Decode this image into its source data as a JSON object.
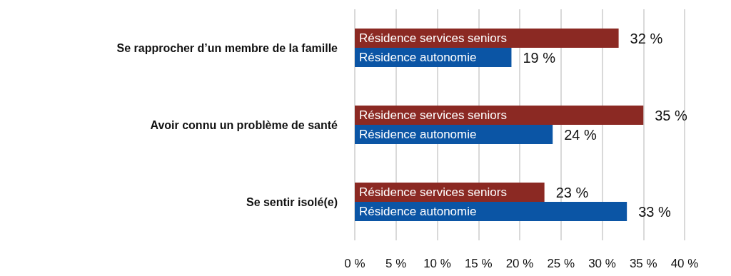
{
  "chart_data": {
    "type": "bar",
    "orientation": "horizontal",
    "categories": [
      "Se rapprocher d’un membre de la famille",
      "Avoir connu un problème de santé",
      "Se sentir isolé(e)"
    ],
    "series": [
      {
        "name": "Résidence services seniors",
        "color": "#8b2923",
        "values": [
          32,
          35,
          23
        ],
        "value_labels": [
          "32 %",
          "35 %",
          "23 %"
        ]
      },
      {
        "name": "Résidence autonomie",
        "color": "#0b55a5",
        "values": [
          19,
          24,
          33
        ],
        "value_labels": [
          "19 %",
          "24 %",
          "33 %"
        ]
      }
    ],
    "xlim": [
      0,
      40
    ],
    "xticks": [
      {
        "value": 0,
        "label": "0 %"
      },
      {
        "value": 5,
        "label": "5 %"
      },
      {
        "value": 10,
        "label": "10 %"
      },
      {
        "value": 15,
        "label": "15 %"
      },
      {
        "value": 20,
        "label": "20 %"
      },
      {
        "value": 25,
        "label": "25 %"
      },
      {
        "value": 30,
        "label": "30 %"
      },
      {
        "value": 35,
        "label": "35 %"
      },
      {
        "value": 40,
        "label": "40 %"
      }
    ],
    "grid": "x",
    "legend": false
  }
}
